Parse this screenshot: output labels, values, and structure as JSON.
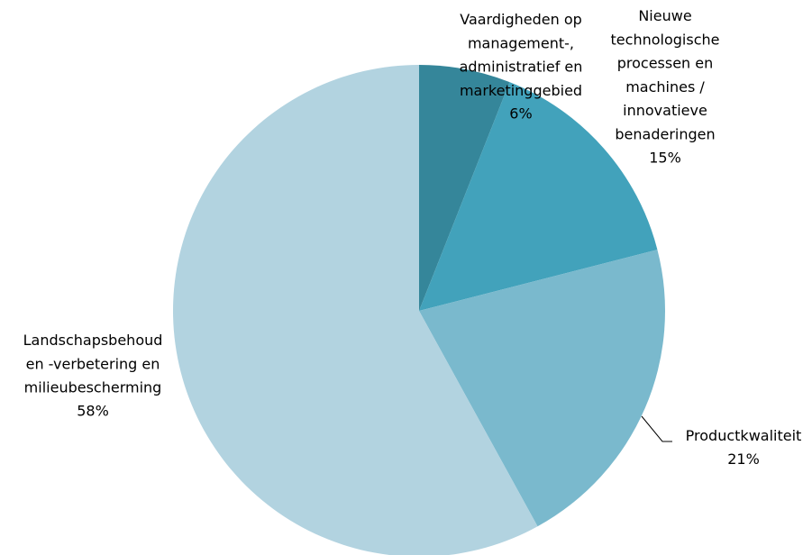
{
  "chart_data": {
    "type": "pie",
    "categories": [
      "Vaardigheden op\nmanagement-,\nadministratief en\nmarketinggebied",
      "Nieuwe\ntechnologische\nprocessen en\nmachines /\ninnovatieve\nbenaderingen",
      "Productkwaliteit",
      "Landschapsbehoud\nen -verbetering en\nmilieubescherming"
    ],
    "values": [
      6,
      15,
      21,
      58
    ],
    "value_labels": [
      "6%",
      "15%",
      "21%",
      "58%"
    ],
    "colors": [
      "#35869a",
      "#42a2bb",
      "#7ab9cd",
      "#b2d3e0"
    ]
  }
}
